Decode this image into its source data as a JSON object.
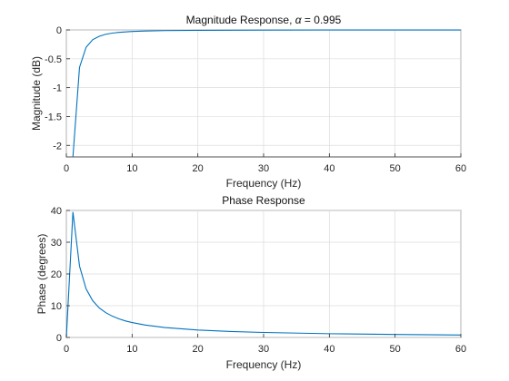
{
  "chart_data": [
    {
      "type": "line",
      "title_prefix": "Magnitude Response, ",
      "title_symbol": "α",
      "title_suffix": " = 0.995",
      "xlabel": "Frequency (Hz)",
      "ylabel": "Magnitude (dB)",
      "xlim": [
        0,
        60
      ],
      "ylim": [
        -2.2,
        0
      ],
      "xticks": [
        "0",
        "10",
        "20",
        "30",
        "40",
        "50",
        "60"
      ],
      "yticks": [
        "0",
        "-0.5",
        "-1",
        "-1.5",
        "-2"
      ],
      "grid": true,
      "line_color": "#0072BD",
      "series": [
        {
          "x": [
            1,
            2,
            3,
            4,
            5,
            6,
            7,
            8,
            10,
            12,
            15,
            20,
            30,
            40,
            50,
            60
          ],
          "y": [
            -2.2,
            -0.65,
            -0.3,
            -0.17,
            -0.11,
            -0.075,
            -0.055,
            -0.042,
            -0.027,
            -0.019,
            -0.012,
            -0.007,
            -0.003,
            -0.0017,
            -0.0011,
            -0.0008
          ]
        }
      ]
    },
    {
      "type": "line",
      "title": "Phase Response",
      "xlabel": "Frequency (Hz)",
      "ylabel": "Phase (degrees)",
      "xlim": [
        0,
        60
      ],
      "ylim": [
        0,
        40
      ],
      "xticks": [
        "0",
        "10",
        "20",
        "30",
        "40",
        "50",
        "60"
      ],
      "yticks": [
        "0",
        "10",
        "20",
        "30",
        "40"
      ],
      "grid": true,
      "line_color": "#0072BD",
      "series": [
        {
          "x": [
            0,
            1,
            2,
            3,
            4,
            5,
            6,
            7,
            8,
            9,
            10,
            12,
            15,
            20,
            25,
            30,
            40,
            50,
            60
          ],
          "y": [
            0,
            39.5,
            22.5,
            15.3,
            11.6,
            9.3,
            7.8,
            6.7,
            5.85,
            5.2,
            4.7,
            3.9,
            3.12,
            2.35,
            1.88,
            1.57,
            1.18,
            0.94,
            0.78
          ]
        }
      ]
    }
  ]
}
